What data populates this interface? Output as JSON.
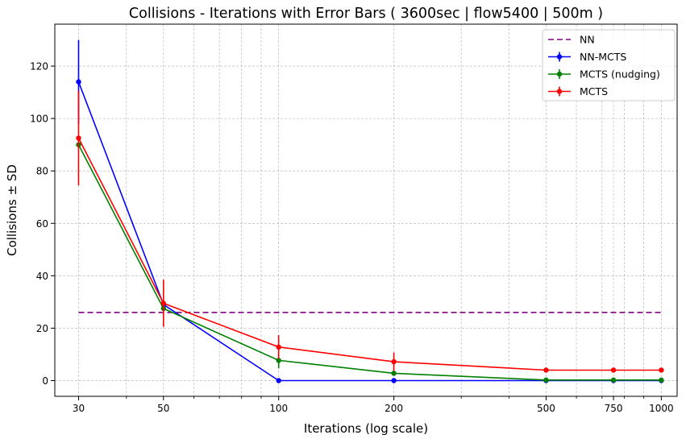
{
  "chart_data": {
    "type": "line",
    "title": "Collisions - Iterations with Error Bars ( 3600sec | flow5400 | 500m )",
    "xlabel": "Iterations (log scale)",
    "ylabel": "Collisions ± SD",
    "xscale": "log",
    "xlim": [
      26,
      1100
    ],
    "ylim": [
      -6,
      136
    ],
    "x": [
      30,
      50,
      100,
      200,
      500,
      750,
      1000
    ],
    "xtick_labels": [
      "30",
      "50",
      "100",
      "200",
      "500",
      "750",
      "1000"
    ],
    "yticks": [
      0,
      20,
      40,
      60,
      80,
      100,
      120
    ],
    "grid": true,
    "legend_position": "top-right",
    "series": [
      {
        "name": "NN",
        "kind": "line",
        "style": "dashed",
        "color": "#800080",
        "values": [
          26,
          26,
          26,
          26,
          26,
          26,
          26
        ]
      },
      {
        "name": "NN-MCTS",
        "kind": "errorbar",
        "color": "#0000ff",
        "values": [
          114,
          29,
          0,
          0,
          0,
          0,
          0
        ],
        "errors": [
          16,
          0,
          0,
          0,
          0,
          0,
          0
        ]
      },
      {
        "name": "MCTS (nudging)",
        "kind": "errorbar",
        "color": "#008000",
        "values": [
          90,
          27.5,
          7.7,
          2.8,
          0.2,
          0.2,
          0.2
        ],
        "errors": [
          0,
          0,
          3,
          0,
          0,
          0,
          0
        ]
      },
      {
        "name": "MCTS",
        "kind": "errorbar",
        "color": "#ff0000",
        "values": [
          92.5,
          29.5,
          12.8,
          7.2,
          4,
          4,
          4
        ],
        "errors": [
          18,
          9,
          4.5,
          3.5,
          0,
          0,
          0
        ]
      }
    ]
  }
}
